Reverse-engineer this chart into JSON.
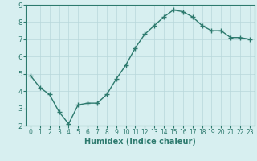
{
  "x": [
    0,
    1,
    2,
    3,
    4,
    5,
    6,
    7,
    8,
    9,
    10,
    11,
    12,
    13,
    14,
    15,
    16,
    17,
    18,
    19,
    20,
    21,
    22,
    23
  ],
  "y": [
    4.9,
    4.2,
    3.8,
    2.8,
    2.1,
    3.2,
    3.3,
    3.3,
    3.8,
    4.7,
    5.5,
    6.5,
    7.3,
    7.8,
    8.3,
    8.7,
    8.6,
    8.3,
    7.8,
    7.5,
    7.5,
    7.1,
    7.1,
    7.0
  ],
  "line_color": "#2d7a6e",
  "marker": "+",
  "markersize": 4,
  "markeredgewidth": 1.0,
  "linewidth": 1.0,
  "xlabel": "Humidex (Indice chaleur)",
  "xlabel_fontsize": 7,
  "bg_color": "#d7eff0",
  "grid_color": "#b8d8db",
  "tick_color": "#2d7a6e",
  "label_color": "#2d7a6e",
  "ylim": [
    2,
    9
  ],
  "xlim": [
    -0.5,
    23.5
  ],
  "yticks": [
    2,
    3,
    4,
    5,
    6,
    7,
    8,
    9
  ],
  "xticks": [
    0,
    1,
    2,
    3,
    4,
    5,
    6,
    7,
    8,
    9,
    10,
    11,
    12,
    13,
    14,
    15,
    16,
    17,
    18,
    19,
    20,
    21,
    22,
    23
  ],
  "tick_fontsize": 5.5,
  "ytick_fontsize": 6.5
}
